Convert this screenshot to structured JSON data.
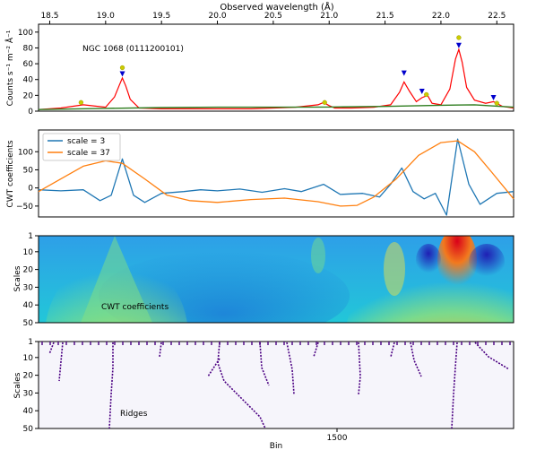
{
  "figure": {
    "top_axis_label": "Observed wavelength (Å)",
    "bottom_axis_label": "Bin",
    "bottom_tick_label": "1500"
  },
  "chart_data": [
    {
      "type": "line",
      "panel": "spectrum",
      "title": "",
      "annotation": "NGC 1068 (0111200101)",
      "xlabel": "Observed wavelength (Å)",
      "ylabel": "Counts s⁻¹ m⁻² Å⁻¹",
      "xlim": [
        18.4,
        22.65
      ],
      "ylim": [
        0,
        110
      ],
      "xticks": [
        "18.5",
        "19.0",
        "19.5",
        "20.0",
        "20.5",
        "21.0",
        "21.5",
        "22.0",
        "22.5"
      ],
      "yticks": [
        "0",
        "20",
        "40",
        "60",
        "80",
        "100"
      ],
      "colors": {
        "spectrum": "#ff0000",
        "continuum": "#2e7d1f",
        "peak_marker": "#0000cc",
        "candidate_marker": "#cccc00"
      },
      "series": [
        {
          "role": "spectrum",
          "x": [
            18.4,
            18.6,
            18.8,
            19.0,
            19.08,
            19.12,
            19.15,
            19.18,
            19.22,
            19.3,
            19.5,
            19.7,
            19.9,
            20.1,
            20.3,
            20.5,
            20.7,
            20.9,
            20.95,
            21.0,
            21.05,
            21.2,
            21.4,
            21.55,
            21.63,
            21.67,
            21.72,
            21.78,
            21.83,
            21.88,
            21.92,
            22.0,
            22.08,
            22.13,
            22.16,
            22.19,
            22.23,
            22.3,
            22.4,
            22.47,
            22.55,
            22.65
          ],
          "y": [
            2,
            4,
            8,
            5,
            18,
            32,
            42,
            32,
            15,
            4,
            3,
            3,
            3,
            3,
            3,
            4,
            5,
            8,
            11,
            7,
            4,
            4,
            5,
            8,
            24,
            37,
            25,
            12,
            17,
            20,
            10,
            8,
            28,
            66,
            78,
            62,
            30,
            14,
            10,
            12,
            6,
            4
          ]
        },
        {
          "role": "continuum",
          "x": [
            18.4,
            19.0,
            19.5,
            20.0,
            20.5,
            21.0,
            21.5,
            22.0,
            22.3,
            22.65
          ],
          "y": [
            2,
            3.5,
            4.5,
            5,
            5,
            5.2,
            6,
            7.5,
            8,
            5
          ]
        }
      ],
      "peaks": [
        {
          "x": 19.15,
          "y": 47
        },
        {
          "x": 21.67,
          "y": 48
        },
        {
          "x": 21.83,
          "y": 25
        },
        {
          "x": 22.16,
          "y": 83
        },
        {
          "x": 22.47,
          "y": 17
        }
      ],
      "candidates": [
        {
          "x": 18.78,
          "y": 11
        },
        {
          "x": 19.15,
          "y": 55
        },
        {
          "x": 20.96,
          "y": 11
        },
        {
          "x": 21.87,
          "y": 21
        },
        {
          "x": 22.16,
          "y": 93
        },
        {
          "x": 22.5,
          "y": 10
        }
      ]
    },
    {
      "type": "line",
      "panel": "cwt",
      "ylabel": "CWT coefficients",
      "xlim": [
        18.4,
        22.65
      ],
      "ylim": [
        -80,
        160
      ],
      "yticks": [
        "100",
        "50",
        "0",
        "−50"
      ],
      "legend": "top-left",
      "series": [
        {
          "name": "scale = 3",
          "color": "#1f77b4",
          "x": [
            18.4,
            18.6,
            18.8,
            18.95,
            19.05,
            19.15,
            19.25,
            19.35,
            19.5,
            19.7,
            19.85,
            20.0,
            20.2,
            20.4,
            20.6,
            20.75,
            20.95,
            21.1,
            21.3,
            21.45,
            21.55,
            21.65,
            21.75,
            21.85,
            21.95,
            22.05,
            22.15,
            22.25,
            22.35,
            22.5,
            22.65
          ],
          "y": [
            -5,
            -8,
            -5,
            -35,
            -20,
            80,
            -20,
            -40,
            -15,
            -10,
            -5,
            -8,
            -3,
            -12,
            -2,
            -10,
            10,
            -18,
            -15,
            -25,
            10,
            55,
            -10,
            -30,
            -15,
            -75,
            135,
            10,
            -45,
            -15,
            -10
          ]
        },
        {
          "name": "scale = 37",
          "color": "#ff7f0e",
          "x": [
            18.4,
            18.6,
            18.8,
            19.0,
            19.15,
            19.35,
            19.55,
            19.75,
            20.0,
            20.3,
            20.6,
            20.9,
            21.1,
            21.25,
            21.4,
            21.6,
            21.8,
            22.0,
            22.15,
            22.3,
            22.45,
            22.65
          ],
          "y": [
            -10,
            25,
            60,
            75,
            68,
            25,
            -20,
            -35,
            -40,
            -32,
            -28,
            -38,
            -50,
            -48,
            -25,
            25,
            90,
            125,
            130,
            100,
            45,
            -30
          ]
        }
      ]
    },
    {
      "type": "heatmap",
      "panel": "cwt_heatmap",
      "annotation": "CWT coefficients",
      "ylabel": "Scales",
      "yticks": [
        "1",
        "10",
        "20",
        "30",
        "40",
        "50"
      ],
      "ylim": [
        1,
        50
      ],
      "colormap": "jet"
    },
    {
      "type": "scatter",
      "panel": "ridges",
      "annotation": "Ridges",
      "ylabel": "Scales",
      "xlabel": "Bin",
      "yticks": [
        "1",
        "10",
        "20",
        "30",
        "40",
        "50"
      ],
      "ylim": [
        1,
        50
      ],
      "ridge_color": "#4b0082"
    }
  ]
}
